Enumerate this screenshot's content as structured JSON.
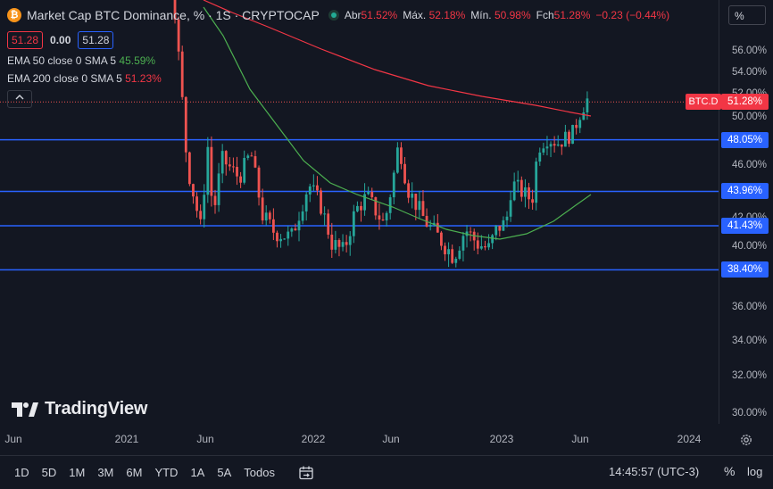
{
  "title": {
    "icon": "bitcoin-icon",
    "text": "Market Cap BTC Dominance, % · 1S · CRYPTOCAP",
    "open_label": "Abr",
    "open": "51.52%",
    "high_label": "Máx.",
    "high": "52.18%",
    "low_label": "Mín.",
    "low": "50.98%",
    "close_label": "Fch",
    "close": "51.28%",
    "change": "−0.23 (−0.44%)"
  },
  "value_row": {
    "last": "51.28",
    "spread": "0.00",
    "last2": "51.28"
  },
  "indicators": [
    {
      "label": "EMA 50 close 0 SMA 5",
      "value": "45.59%",
      "color": "#4caf50"
    },
    {
      "label": "EMA 200 close 0 SMA 5",
      "value": "51.23%",
      "color": "#f23645"
    }
  ],
  "collapse_glyph": "^",
  "scale_button": "%",
  "price_ticks": [
    "56.00%",
    "54.00%",
    "52.00%",
    "50.00%",
    "46.00%",
    "42.00%",
    "40.00%",
    "36.00%",
    "34.00%",
    "32.00%",
    "30.00%"
  ],
  "price_labels": [
    {
      "text": "48.05%",
      "price": 48.05
    },
    {
      "text": "43.96%",
      "price": 43.96
    },
    {
      "text": "41.43%",
      "price": 41.43
    },
    {
      "text": "38.40%",
      "price": 38.4
    }
  ],
  "current_price": {
    "tag": "BTC.D",
    "text": "51.28%",
    "price": 51.28
  },
  "time_ticks": [
    "Jun",
    "2021",
    "Jun",
    "2022",
    "Jun",
    "2023",
    "Jun",
    "2024"
  ],
  "watermark": "TradingView",
  "ranges": [
    "1D",
    "5D",
    "1M",
    "3M",
    "6M",
    "YTD",
    "1A",
    "5A",
    "Todos"
  ],
  "clock": "14:45:57 (UTC-3)",
  "scale_pct": "%",
  "scale_log": "log",
  "colors": {
    "up": "#26a69a",
    "down": "#ef5350",
    "ema50": "#4caf50",
    "ema200": "#f23645",
    "hline": "#2962ff"
  }
}
